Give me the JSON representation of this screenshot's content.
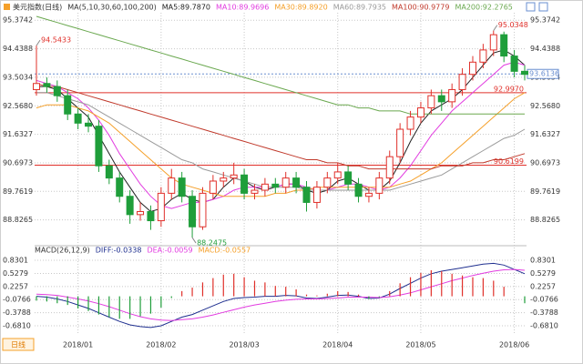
{
  "controls": {
    "period": "日线"
  },
  "chart_data": [
    {
      "type": "candlestick",
      "title": "美元指数(日线)",
      "indicator": "MA(5,10,30,60,100,200)",
      "categories": [
        null,
        null,
        null,
        null,
        "2018/01",
        null,
        null,
        null,
        null,
        null,
        null,
        null,
        "2018/02",
        null,
        null,
        null,
        null,
        null,
        null,
        null,
        "2018/03",
        null,
        null,
        null,
        null,
        null,
        null,
        null,
        null,
        "2018/04",
        null,
        null,
        null,
        null,
        null,
        null,
        null,
        "2018/05",
        null,
        null,
        null,
        null,
        null,
        null,
        null,
        null,
        "2018/06",
        null
      ],
      "open": [
        93.1,
        93.3,
        93.2,
        92.9,
        92.3,
        92.0,
        91.9,
        90.6,
        90.2,
        89.6,
        89.0,
        89.1,
        88.8,
        89.7,
        90.2,
        89.6,
        88.6,
        89.7,
        90.1,
        90.2,
        90.3,
        89.7,
        89.8,
        90.0,
        89.9,
        90.2,
        89.9,
        89.4,
        89.9,
        90.2,
        90.4,
        90.0,
        89.6,
        89.7,
        90.2,
        90.9,
        91.8,
        92.2,
        92.5,
        92.9,
        92.7,
        93.1,
        93.6,
        94.0,
        94.4,
        94.9,
        94.2,
        93.7
      ],
      "high": [
        94.5433,
        93.5,
        93.4,
        93.1,
        92.5,
        92.3,
        92.1,
        90.8,
        90.4,
        89.8,
        89.4,
        89.3,
        89.9,
        90.5,
        90.4,
        89.8,
        89.9,
        90.3,
        90.4,
        90.7,
        90.5,
        90.0,
        90.2,
        90.2,
        90.4,
        90.4,
        90.1,
        90.1,
        90.4,
        90.7,
        90.6,
        90.2,
        89.9,
        90.4,
        91.1,
        92.0,
        92.4,
        92.7,
        93.1,
        93.1,
        93.3,
        93.8,
        94.2,
        94.6,
        95.0348,
        95.0,
        94.4,
        93.9
      ],
      "low": [
        92.9,
        93.0,
        92.7,
        92.1,
        91.8,
        91.7,
        90.4,
        90.0,
        89.4,
        88.7,
        88.8,
        88.5,
        88.6,
        89.5,
        89.4,
        88.2475,
        88.5,
        89.5,
        89.9,
        90.0,
        89.5,
        89.5,
        89.6,
        89.7,
        89.7,
        89.7,
        89.1,
        89.2,
        89.7,
        90.0,
        89.8,
        89.4,
        89.4,
        89.5,
        90.0,
        90.7,
        91.6,
        92.0,
        92.3,
        92.4,
        92.5,
        92.9,
        93.4,
        93.8,
        94.2,
        94.0,
        93.5,
        93.4
      ],
      "close": [
        93.3,
        93.2,
        92.9,
        92.3,
        92.0,
        91.9,
        90.6,
        90.2,
        89.6,
        89.0,
        89.1,
        88.8,
        89.7,
        90.2,
        89.6,
        88.6,
        89.7,
        90.1,
        90.2,
        90.3,
        89.7,
        89.8,
        90.0,
        89.9,
        90.2,
        89.9,
        89.4,
        89.9,
        90.2,
        90.4,
        90.0,
        89.6,
        89.7,
        90.2,
        90.9,
        91.8,
        92.2,
        92.5,
        92.9,
        92.7,
        93.1,
        93.6,
        94.0,
        94.4,
        94.9,
        94.2,
        93.7,
        93.6
      ],
      "up_color": "#e0302a",
      "down_color": "#1f9e3a",
      "series": [
        {
          "name": "MA5:89.7870",
          "color": "#222222",
          "values": [
            93.2,
            93.2,
            93.1,
            92.8,
            92.5,
            92.2,
            91.6,
            91.0,
            90.4,
            89.9,
            89.4,
            89.1,
            89.2,
            89.5,
            89.7,
            89.5,
            89.4,
            89.5,
            89.9,
            90.2,
            90.1,
            89.9,
            89.8,
            89.9,
            90.0,
            90.0,
            89.8,
            89.7,
            89.8,
            90.1,
            90.2,
            90.0,
            89.8,
            89.8,
            90.1,
            90.7,
            91.4,
            92.0,
            92.4,
            92.6,
            92.8,
            93.1,
            93.5,
            93.9,
            94.3,
            94.4,
            94.2,
            93.9
          ]
        },
        {
          "name": "MA10:89.9696",
          "color": "#e23ce0",
          "values": [
            93.4,
            93.3,
            93.2,
            93.0,
            92.8,
            92.5,
            92.1,
            91.6,
            91.0,
            90.5,
            90.0,
            89.6,
            89.3,
            89.2,
            89.3,
            89.4,
            89.4,
            89.5,
            89.6,
            89.8,
            89.9,
            89.9,
            89.9,
            89.9,
            90.0,
            90.0,
            89.9,
            89.8,
            89.8,
            89.9,
            90.0,
            90.0,
            89.9,
            89.8,
            89.9,
            90.2,
            90.6,
            91.1,
            91.6,
            92.0,
            92.4,
            92.7,
            93.0,
            93.3,
            93.6,
            93.9,
            94.0,
            93.9
          ]
        },
        {
          "name": "MA30:89.8920",
          "color": "#f5a02a",
          "values": [
            92.5,
            92.6,
            92.6,
            92.6,
            92.5,
            92.4,
            92.2,
            92.0,
            91.7,
            91.4,
            91.1,
            90.8,
            90.5,
            90.2,
            90.0,
            89.9,
            89.8,
            89.7,
            89.6,
            89.6,
            89.6,
            89.6,
            89.6,
            89.7,
            89.7,
            89.8,
            89.8,
            89.9,
            89.9,
            89.9,
            89.9,
            89.9,
            89.9,
            89.9,
            89.9,
            90.0,
            90.1,
            90.3,
            90.5,
            90.7,
            91.0,
            91.3,
            91.6,
            91.9,
            92.2,
            92.5,
            92.8,
            93.0
          ]
        },
        {
          "name": "MA60:89.7935",
          "color": "#9a9a9a",
          "values": [
            93.0,
            93.0,
            92.9,
            92.8,
            92.7,
            92.6,
            92.4,
            92.2,
            92.0,
            91.8,
            91.6,
            91.4,
            91.2,
            91.0,
            90.8,
            90.7,
            90.5,
            90.4,
            90.3,
            90.2,
            90.1,
            90.0,
            89.9,
            89.9,
            89.9,
            89.9,
            89.8,
            89.8,
            89.8,
            89.8,
            89.8,
            89.8,
            89.8,
            89.8,
            89.8,
            89.9,
            90.0,
            90.1,
            90.2,
            90.3,
            90.5,
            90.7,
            90.9,
            91.1,
            91.3,
            91.5,
            91.6,
            91.8
          ]
        },
        {
          "name": "MA100:90.9779",
          "color": "#c0392b",
          "values": [
            93.3,
            93.2,
            93.2,
            93.1,
            93.0,
            92.9,
            92.8,
            92.7,
            92.6,
            92.5,
            92.4,
            92.3,
            92.2,
            92.1,
            92.0,
            91.9,
            91.8,
            91.7,
            91.6,
            91.5,
            91.4,
            91.3,
            91.2,
            91.1,
            91.0,
            90.9,
            90.8,
            90.8,
            90.7,
            90.7,
            90.6,
            90.6,
            90.5,
            90.5,
            90.5,
            90.5,
            90.5,
            90.5,
            90.5,
            90.6,
            90.6,
            90.6,
            90.7,
            90.7,
            90.8,
            90.8,
            90.9,
            91.0
          ]
        },
        {
          "name": "MA200:92.2765",
          "color": "#6aa84f",
          "values": [
            95.5,
            95.4,
            95.3,
            95.2,
            95.1,
            95.0,
            94.9,
            94.8,
            94.7,
            94.6,
            94.5,
            94.4,
            94.3,
            94.2,
            94.1,
            94.0,
            93.9,
            93.8,
            93.7,
            93.6,
            93.5,
            93.4,
            93.3,
            93.2,
            93.1,
            93.0,
            92.9,
            92.8,
            92.7,
            92.6,
            92.6,
            92.5,
            92.5,
            92.4,
            92.4,
            92.4,
            92.3,
            92.3,
            92.3,
            92.3,
            92.3,
            92.3,
            92.3,
            92.3,
            92.3,
            92.3,
            92.3,
            92.3
          ]
        }
      ],
      "ylim": [
        88.1,
        95.68
      ],
      "yticks": [
        95.3742,
        94.4388,
        93.5034,
        {
          "value": 92.568,
          "label": "92.5680"
        },
        91.6327,
        90.6973,
        89.7619,
        88.8265
      ],
      "hlines": [
        {
          "value": 92.997,
          "label": "92.9970"
        },
        {
          "value": 90.6199,
          "label": "90.6199"
        }
      ],
      "hline_color": "#e0302a",
      "last_price": {
        "value": 93.6136,
        "label": "93.6136"
      },
      "extremes": [
        {
          "value": 94.5433,
          "label": "94.5433"
        },
        {
          "value": 95.0348,
          "label": "95.0348"
        },
        {
          "value": 88.2475,
          "label": "88.2475"
        }
      ],
      "grid": true
    },
    {
      "type": "macd",
      "title": "MACD(26,12,9)",
      "series": [
        {
          "name": "DIFF:-0.0338",
          "color": "#1f2f8f",
          "values": [
            0.0,
            -0.02,
            -0.06,
            -0.12,
            -0.2,
            -0.28,
            -0.38,
            -0.48,
            -0.58,
            -0.66,
            -0.7,
            -0.72,
            -0.68,
            -0.58,
            -0.48,
            -0.42,
            -0.32,
            -0.22,
            -0.12,
            -0.05,
            -0.03,
            -0.02,
            0.0,
            0.0,
            0.02,
            0.01,
            -0.04,
            -0.05,
            -0.02,
            0.02,
            0.03,
            0.0,
            -0.05,
            -0.04,
            0.05,
            0.18,
            0.3,
            0.42,
            0.52,
            0.58,
            0.62,
            0.66,
            0.7,
            0.74,
            0.76,
            0.72,
            0.62,
            0.52
          ]
        },
        {
          "name": "DEA:-0.0059",
          "color": "#e23ce0",
          "values": [
            0.05,
            0.04,
            0.02,
            -0.02,
            -0.06,
            -0.11,
            -0.17,
            -0.24,
            -0.32,
            -0.4,
            -0.47,
            -0.52,
            -0.55,
            -0.56,
            -0.54,
            -0.52,
            -0.48,
            -0.43,
            -0.37,
            -0.31,
            -0.25,
            -0.2,
            -0.16,
            -0.12,
            -0.09,
            -0.07,
            -0.06,
            -0.06,
            -0.05,
            -0.04,
            -0.02,
            -0.02,
            -0.02,
            -0.03,
            -0.01,
            0.03,
            0.08,
            0.15,
            0.22,
            0.29,
            0.36,
            0.42,
            0.48,
            0.53,
            0.58,
            0.61,
            0.62,
            0.6
          ]
        },
        {
          "name": "MACD:-0.0557",
          "color": "#f5a02a",
          "type": "bar",
          "up_color": "#e0302a",
          "down_color": "#1f9e3a",
          "values": [
            -0.1,
            -0.12,
            -0.16,
            -0.2,
            -0.28,
            -0.34,
            -0.42,
            -0.48,
            -0.52,
            -0.52,
            -0.46,
            -0.4,
            -0.26,
            -0.04,
            0.12,
            0.2,
            0.32,
            0.42,
            0.5,
            0.52,
            0.44,
            0.36,
            0.32,
            0.24,
            0.22,
            0.16,
            0.04,
            0.02,
            0.06,
            0.12,
            0.1,
            0.04,
            -0.06,
            -0.02,
            0.12,
            0.3,
            0.44,
            0.54,
            0.6,
            0.58,
            0.52,
            0.48,
            0.44,
            0.42,
            0.36,
            0.22,
            0.0,
            -0.16
          ]
        }
      ],
      "ylim": [
        -0.89,
        1.02
      ],
      "yticks": [
        0.8301,
        {
          "value": 0.5279,
          "label": "0.5279"
        },
        0.2257,
        -0.0766,
        -0.3788,
        {
          "value": -0.681,
          "label": "-0.6810"
        }
      ],
      "grid": true
    }
  ]
}
